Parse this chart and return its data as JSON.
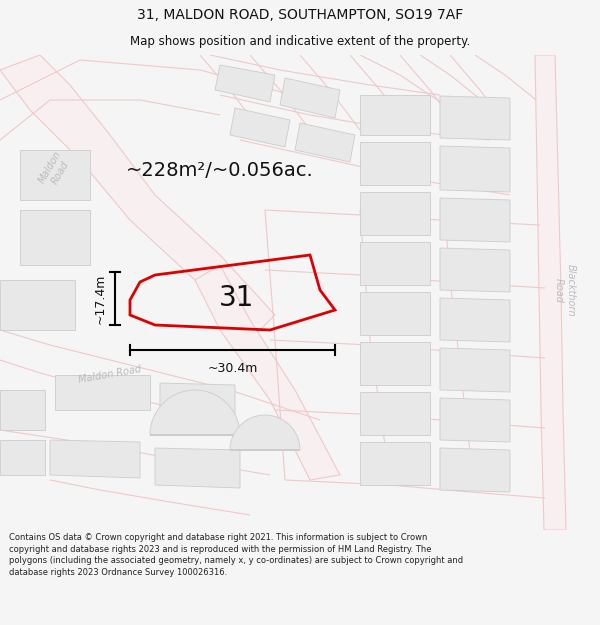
{
  "title": "31, MALDON ROAD, SOUTHAMPTON, SO19 7AF",
  "subtitle": "Map shows position and indicative extent of the property.",
  "area_label": "~228m²/~0.056ac.",
  "property_number": "31",
  "dim_width": "~30.4m",
  "dim_height": "~17.4m",
  "footer": "Contains OS data © Crown copyright and database right 2021. This information is subject to Crown copyright and database rights 2023 and is reproduced with the permission of HM Land Registry. The polygons (including the associated geometry, namely x, y co-ordinates) are subject to Crown copyright and database rights 2023 Ordnance Survey 100026316.",
  "bg_color": "#f5f5f5",
  "map_bg": "#ffffff",
  "road_color": "#f0c8c8",
  "road_lw": 0.8,
  "building_color": "#e8e8e8",
  "building_outline": "#cccccc",
  "building_lw": 0.6,
  "property_outline": "#dd0000",
  "road_label_color": "#bbbbbb",
  "dim_color": "#111111",
  "title_color": "#111111",
  "footer_color": "#222222",
  "title_fontsize": 10,
  "subtitle_fontsize": 8.5,
  "area_fontsize": 14,
  "number_fontsize": 20,
  "dim_fontsize": 9,
  "road_label_fontsize": 7,
  "footer_fontsize": 6.0
}
